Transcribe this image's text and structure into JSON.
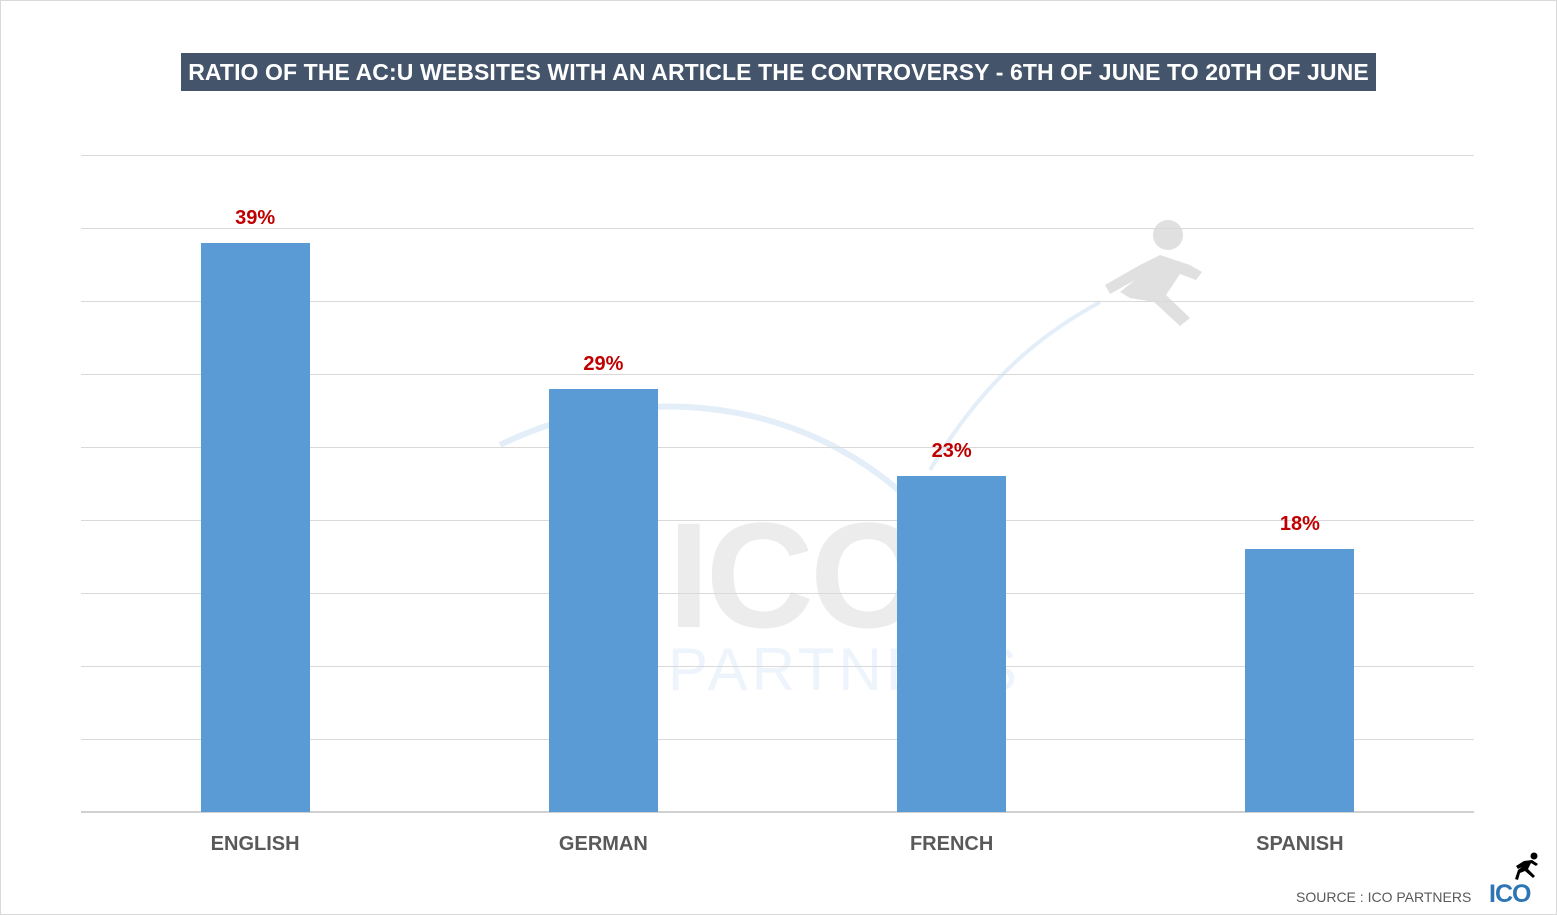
{
  "chart_data": {
    "type": "bar",
    "title": "RATIO OF THE AC:U WEBSITES WITH AN ARTICLE THE CONTROVERSY - 6TH OF JUNE TO 20TH OF JUNE",
    "categories": [
      "ENGLISH",
      "GERMAN",
      "FRENCH",
      "SPANISH"
    ],
    "values": [
      39,
      29,
      23,
      18
    ],
    "value_labels": [
      "39%",
      "29%",
      "23%",
      "18%"
    ],
    "unit": "%",
    "xlabel": "",
    "ylabel": "",
    "ylim": [
      0,
      45
    ],
    "grid": true,
    "gridline_step": 5,
    "y_tick_labels_visible": false,
    "legend": null,
    "bar_color": "#5b9bd5",
    "label_color": "#c00000"
  },
  "header": {
    "title": "RATIO OF THE AC:U WEBSITES WITH AN ARTICLE THE CONTROVERSY - 6TH OF JUNE TO 20TH OF JUNE",
    "title_bg": "#44546a"
  },
  "watermark": {
    "main": "ICO",
    "sub": "PARTNERS"
  },
  "footer": {
    "source": "SOURCE : ICO PARTNERS",
    "logo": "ICO"
  }
}
